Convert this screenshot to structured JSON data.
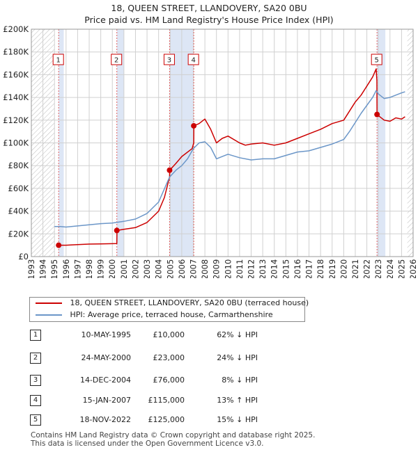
{
  "title": "18, QUEEN STREET, LLANDOVERY, SA20 0BU",
  "subtitle": "Price paid vs. HM Land Registry's House Price Index (HPI)",
  "colors": {
    "price": "#cc0000",
    "hpi": "#6b96c8",
    "band": "#dde6f5",
    "grid": "#d0d0d0"
  },
  "legend": {
    "price_label": "18, QUEEN STREET, LLANDOVERY, SA20 0BU (terraced house)",
    "hpi_label": "HPI: Average price, terraced house, Carmarthenshire"
  },
  "sales": [
    {
      "num": "1",
      "date": "10-MAY-1995",
      "price": "£10,000",
      "hpi": "62% ↓ HPI"
    },
    {
      "num": "2",
      "date": "24-MAY-2000",
      "price": "£23,000",
      "hpi": "24% ↓ HPI"
    },
    {
      "num": "3",
      "date": "14-DEC-2004",
      "price": "£76,000",
      "hpi": "8% ↓ HPI"
    },
    {
      "num": "4",
      "date": "15-JAN-2007",
      "price": "£115,000",
      "hpi": "13% ↑ HPI"
    },
    {
      "num": "5",
      "date": "18-NOV-2022",
      "price": "£125,000",
      "hpi": "15% ↓ HPI"
    }
  ],
  "footer": {
    "line1": "Contains HM Land Registry data © Crown copyright and database right 2025.",
    "line2": "This data is licensed under the Open Government Licence v3.0."
  },
  "chart_data": {
    "type": "line",
    "title": "18, QUEEN STREET, LLANDOVERY, SA20 0BU",
    "subtitle": "Price paid vs. HM Land Registry's House Price Index (HPI)",
    "xlim": [
      1993,
      2026
    ],
    "ylim": [
      0,
      200000
    ],
    "x_ticks": [
      1993,
      1994,
      1995,
      1996,
      1997,
      1998,
      1999,
      2000,
      2001,
      2002,
      2003,
      2004,
      2005,
      2006,
      2007,
      2008,
      2009,
      2010,
      2011,
      2012,
      2013,
      2014,
      2015,
      2016,
      2017,
      2018,
      2019,
      2020,
      2021,
      2022,
      2023,
      2024,
      2025,
      2026
    ],
    "y_ticks": [
      0,
      20000,
      40000,
      60000,
      80000,
      100000,
      120000,
      140000,
      160000,
      180000,
      200000
    ],
    "y_tick_labels": [
      "£0",
      "£20K",
      "£40K",
      "£60K",
      "£80K",
      "£100K",
      "£120K",
      "£140K",
      "£160K",
      "£180K",
      "£200K"
    ],
    "grid": true,
    "hatched_ranges": [
      [
        1993,
        1995.0
      ],
      [
        2025.5,
        2026
      ]
    ],
    "highlight_bands": [
      [
        1995.36,
        1995.8
      ],
      [
        2000.4,
        2001.0
      ],
      [
        2004.95,
        2007.04
      ],
      [
        2022.88,
        2023.6
      ]
    ],
    "series": [
      {
        "name": "18, QUEEN STREET, LLANDOVERY, SA20 0BU (terraced house)",
        "color": "#cc0000",
        "points": [
          [
            1995.36,
            10000
          ],
          [
            1996,
            10000
          ],
          [
            1997,
            10500
          ],
          [
            1998,
            11000
          ],
          [
            1999,
            11200
          ],
          [
            2000.39,
            11500
          ],
          [
            2000.4,
            23000
          ],
          [
            2001,
            24000
          ],
          [
            2002,
            25500
          ],
          [
            2003,
            30000
          ],
          [
            2004,
            40000
          ],
          [
            2004.5,
            52000
          ],
          [
            2004.95,
            70000
          ],
          [
            2004.96,
            76000
          ],
          [
            2005.5,
            82000
          ],
          [
            2006,
            88000
          ],
          [
            2006.9,
            95000
          ],
          [
            2007.04,
            100000
          ],
          [
            2007.05,
            115000
          ],
          [
            2007.5,
            117000
          ],
          [
            2008,
            121000
          ],
          [
            2008.5,
            112000
          ],
          [
            2009,
            100000
          ],
          [
            2009.5,
            104000
          ],
          [
            2010,
            106000
          ],
          [
            2011,
            100000
          ],
          [
            2011.5,
            98000
          ],
          [
            2012,
            99000
          ],
          [
            2013,
            100000
          ],
          [
            2014,
            98000
          ],
          [
            2015,
            100000
          ],
          [
            2016,
            104000
          ],
          [
            2017,
            108000
          ],
          [
            2018,
            112000
          ],
          [
            2019,
            117000
          ],
          [
            2020,
            120000
          ],
          [
            2020.5,
            128000
          ],
          [
            2021,
            136000
          ],
          [
            2021.5,
            142000
          ],
          [
            2022,
            150000
          ],
          [
            2022.5,
            158000
          ],
          [
            2022.8,
            165000
          ],
          [
            2022.87,
            155000
          ],
          [
            2022.88,
            125000
          ],
          [
            2023,
            124000
          ],
          [
            2023.5,
            120000
          ],
          [
            2024,
            119000
          ],
          [
            2024.5,
            122000
          ],
          [
            2025,
            121000
          ],
          [
            2025.3,
            123000
          ]
        ]
      },
      {
        "name": "HPI: Average price, terraced house, Carmarthenshire",
        "color": "#6b96c8",
        "points": [
          [
            1995.0,
            26500
          ],
          [
            1995.5,
            26500
          ],
          [
            1996,
            26000
          ],
          [
            1997,
            27000
          ],
          [
            1998,
            28000
          ],
          [
            1999,
            29000
          ],
          [
            2000,
            29500
          ],
          [
            2001,
            31000
          ],
          [
            2002,
            33000
          ],
          [
            2003,
            38000
          ],
          [
            2004,
            48000
          ],
          [
            2004.95,
            70000
          ],
          [
            2005.5,
            76000
          ],
          [
            2006,
            80000
          ],
          [
            2006.5,
            86000
          ],
          [
            2007,
            95000
          ],
          [
            2007.5,
            100000
          ],
          [
            2008,
            101000
          ],
          [
            2008.5,
            96000
          ],
          [
            2009,
            86000
          ],
          [
            2009.5,
            88000
          ],
          [
            2010,
            90000
          ],
          [
            2011,
            87000
          ],
          [
            2012,
            85000
          ],
          [
            2013,
            86000
          ],
          [
            2014,
            86000
          ],
          [
            2015,
            89000
          ],
          [
            2016,
            92000
          ],
          [
            2017,
            93000
          ],
          [
            2018,
            96000
          ],
          [
            2019,
            99000
          ],
          [
            2020,
            103000
          ],
          [
            2020.5,
            110000
          ],
          [
            2021,
            118000
          ],
          [
            2021.5,
            126000
          ],
          [
            2022,
            133000
          ],
          [
            2022.5,
            140000
          ],
          [
            2022.8,
            146000
          ],
          [
            2023,
            143000
          ],
          [
            2023.5,
            139000
          ],
          [
            2024,
            140000
          ],
          [
            2024.5,
            142000
          ],
          [
            2025,
            144000
          ],
          [
            2025.3,
            145000
          ]
        ]
      }
    ],
    "markers": [
      {
        "label": "1",
        "x": 1995.36,
        "y": 10000
      },
      {
        "label": "2",
        "x": 2000.39,
        "y": 23000
      },
      {
        "label": "3",
        "x": 2004.95,
        "y": 76000
      },
      {
        "label": "4",
        "x": 2007.04,
        "y": 115000
      },
      {
        "label": "5",
        "x": 2022.88,
        "y": 125000
      }
    ]
  }
}
